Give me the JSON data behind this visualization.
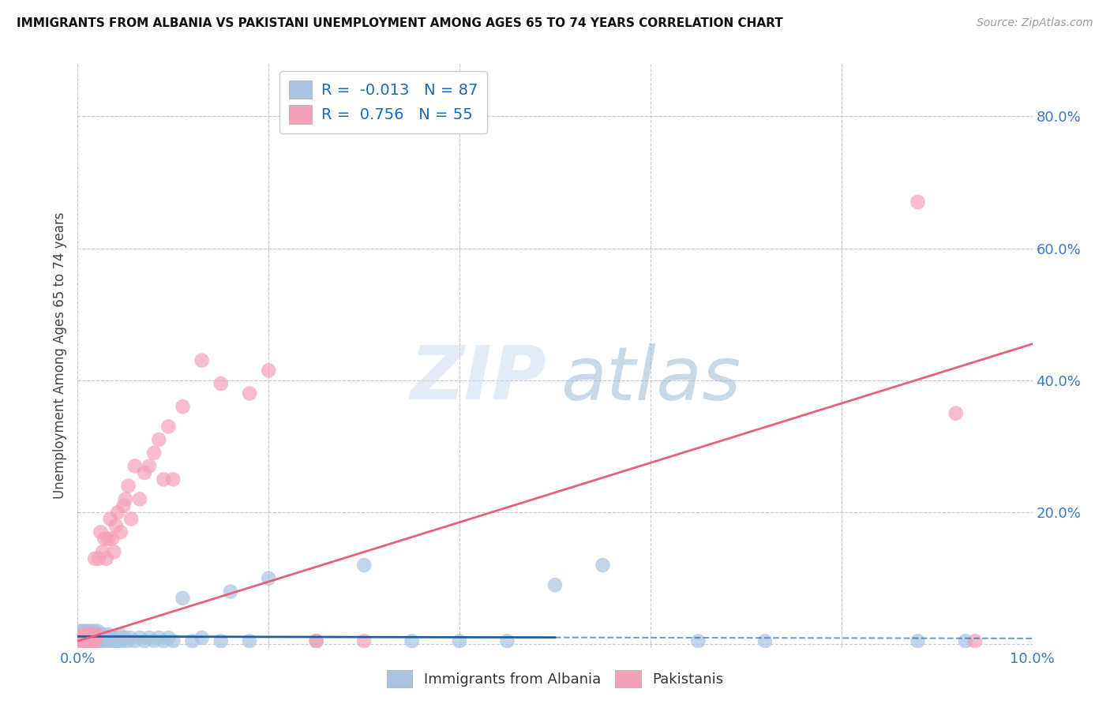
{
  "title": "IMMIGRANTS FROM ALBANIA VS PAKISTANI UNEMPLOYMENT AMONG AGES 65 TO 74 YEARS CORRELATION CHART",
  "source": "Source: ZipAtlas.com",
  "ylabel": "Unemployment Among Ages 65 to 74 years",
  "xlim": [
    0.0,
    0.1
  ],
  "ylim": [
    -0.005,
    0.88
  ],
  "albania_R": -0.013,
  "albania_N": 87,
  "pakistan_R": 0.756,
  "pakistan_N": 55,
  "albania_color": "#a8c4e0",
  "pakistan_color": "#f4a0b8",
  "albania_line_color": "#1a5fa8",
  "pakistan_line_color": "#e8607a",
  "legend_R_color": "#1a6bb5",
  "albania_scatter": {
    "x": [
      0.0001,
      0.0002,
      0.0002,
      0.0003,
      0.0003,
      0.0004,
      0.0004,
      0.0005,
      0.0005,
      0.0006,
      0.0006,
      0.0007,
      0.0007,
      0.0008,
      0.0008,
      0.0009,
      0.0009,
      0.001,
      0.001,
      0.001,
      0.0011,
      0.0011,
      0.0012,
      0.0012,
      0.0013,
      0.0013,
      0.0014,
      0.0014,
      0.0015,
      0.0015,
      0.0016,
      0.0016,
      0.0017,
      0.0018,
      0.0018,
      0.0019,
      0.002,
      0.002,
      0.0021,
      0.0022,
      0.0023,
      0.0024,
      0.0025,
      0.0026,
      0.0027,
      0.0028,
      0.003,
      0.003,
      0.0032,
      0.0033,
      0.0035,
      0.0036,
      0.0038,
      0.004,
      0.0042,
      0.0044,
      0.0046,
      0.005,
      0.0052,
      0.0055,
      0.006,
      0.0065,
      0.007,
      0.0075,
      0.008,
      0.0085,
      0.009,
      0.0095,
      0.01,
      0.011,
      0.012,
      0.013,
      0.015,
      0.016,
      0.018,
      0.02,
      0.025,
      0.03,
      0.035,
      0.04,
      0.045,
      0.05,
      0.055,
      0.065,
      0.072,
      0.088,
      0.093
    ],
    "y": [
      0.005,
      0.01,
      0.015,
      0.02,
      0.005,
      0.01,
      0.015,
      0.02,
      0.005,
      0.01,
      0.015,
      0.01,
      0.005,
      0.015,
      0.02,
      0.01,
      0.005,
      0.02,
      0.01,
      0.015,
      0.01,
      0.005,
      0.015,
      0.02,
      0.01,
      0.005,
      0.015,
      0.01,
      0.02,
      0.015,
      0.01,
      0.005,
      0.015,
      0.02,
      0.01,
      0.005,
      0.01,
      0.015,
      0.02,
      0.01,
      0.005,
      0.015,
      0.01,
      0.005,
      0.015,
      0.01,
      0.005,
      0.01,
      0.015,
      0.01,
      0.005,
      0.01,
      0.005,
      0.01,
      0.005,
      0.015,
      0.005,
      0.01,
      0.005,
      0.01,
      0.005,
      0.01,
      0.005,
      0.01,
      0.005,
      0.01,
      0.005,
      0.01,
      0.005,
      0.07,
      0.005,
      0.01,
      0.005,
      0.08,
      0.005,
      0.1,
      0.005,
      0.12,
      0.005,
      0.005,
      0.005,
      0.09,
      0.12,
      0.005,
      0.005,
      0.005,
      0.005
    ]
  },
  "pakistan_scatter": {
    "x": [
      0.0001,
      0.0002,
      0.0003,
      0.0004,
      0.0005,
      0.0006,
      0.0007,
      0.0008,
      0.0009,
      0.001,
      0.0011,
      0.0012,
      0.0013,
      0.0014,
      0.0015,
      0.0016,
      0.0017,
      0.0018,
      0.0019,
      0.002,
      0.0022,
      0.0024,
      0.0026,
      0.0028,
      0.003,
      0.0032,
      0.0034,
      0.0036,
      0.0038,
      0.004,
      0.0042,
      0.0045,
      0.0048,
      0.005,
      0.0053,
      0.0056,
      0.006,
      0.0065,
      0.007,
      0.0075,
      0.008,
      0.0085,
      0.009,
      0.0095,
      0.01,
      0.011,
      0.013,
      0.015,
      0.018,
      0.02,
      0.025,
      0.03,
      0.088,
      0.092,
      0.094
    ],
    "y": [
      0.005,
      0.005,
      0.005,
      0.01,
      0.005,
      0.01,
      0.015,
      0.01,
      0.005,
      0.01,
      0.015,
      0.005,
      0.01,
      0.015,
      0.005,
      0.015,
      0.01,
      0.13,
      0.005,
      0.015,
      0.13,
      0.17,
      0.14,
      0.16,
      0.13,
      0.16,
      0.19,
      0.16,
      0.14,
      0.18,
      0.2,
      0.17,
      0.21,
      0.22,
      0.24,
      0.19,
      0.27,
      0.22,
      0.26,
      0.27,
      0.29,
      0.31,
      0.25,
      0.33,
      0.25,
      0.36,
      0.43,
      0.395,
      0.38,
      0.415,
      0.005,
      0.005,
      0.67,
      0.35,
      0.005
    ]
  },
  "albania_line": {
    "x0": 0.0,
    "x1": 0.1,
    "y0": 0.012,
    "y1": 0.009
  },
  "albania_line_solid_end": 0.05,
  "pakistan_line": {
    "x0": 0.0,
    "x1": 0.1,
    "y0": 0.005,
    "y1": 0.455
  }
}
